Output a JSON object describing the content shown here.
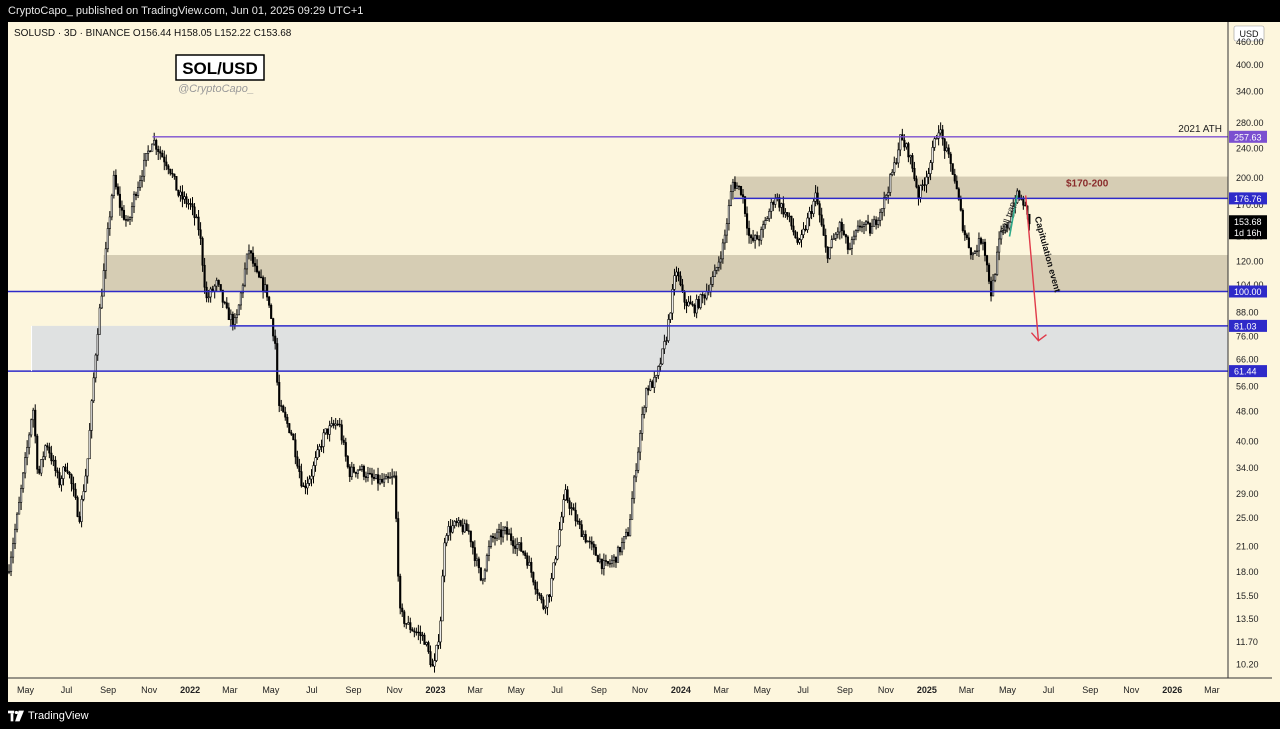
{
  "header": {
    "published_line": "CryptoCapo_ published on TradingView.com, Jun 01, 2025 09:29 UTC+1"
  },
  "footer": {
    "brand": "TradingView"
  },
  "chart_data": {
    "type": "candlestick",
    "symbol_line": "SOLUSD · 3D · BINANCE",
    "ohlc": {
      "open": "O156.44",
      "high": "H158.05",
      "low": "L152.22",
      "close": "C153.68"
    },
    "watermark_title": "SOL/USD",
    "watermark_handle": "@CryptoCapo_",
    "currency": "USD",
    "y_scale": "log",
    "ylim": [
      9.4,
      520
    ],
    "y_ticks": [
      460,
      400,
      340,
      280,
      240,
      200,
      170,
      140,
      120,
      104,
      88,
      76,
      66,
      56,
      48,
      40,
      34,
      29,
      25,
      21,
      18,
      15.5,
      13.5,
      11.7,
      10.2
    ],
    "y_tick_labels": [
      "460.00",
      "400.00",
      "340.00",
      "280.00",
      "240.00",
      "200.00",
      "170.00",
      "140.00",
      "120.00",
      "104.00",
      "88.00",
      "76.00",
      "66.00",
      "56.00",
      "48.00",
      "40.00",
      "34.00",
      "29.00",
      "25.00",
      "21.00",
      "18.00",
      "15.50",
      "13.50",
      "11.70",
      "10.20"
    ],
    "x_range": [
      "2021-04-05",
      "2026-03-25"
    ],
    "x_ticks": [
      {
        "date": "2021-05-01",
        "label": "May"
      },
      {
        "date": "2021-07-01",
        "label": "Jul"
      },
      {
        "date": "2021-09-01",
        "label": "Sep"
      },
      {
        "date": "2021-11-01",
        "label": "Nov"
      },
      {
        "date": "2022-01-01",
        "label": "2022"
      },
      {
        "date": "2022-03-01",
        "label": "Mar"
      },
      {
        "date": "2022-05-01",
        "label": "May"
      },
      {
        "date": "2022-07-01",
        "label": "Jul"
      },
      {
        "date": "2022-09-01",
        "label": "Sep"
      },
      {
        "date": "2022-11-01",
        "label": "Nov"
      },
      {
        "date": "2023-01-01",
        "label": "2023"
      },
      {
        "date": "2023-03-01",
        "label": "Mar"
      },
      {
        "date": "2023-05-01",
        "label": "May"
      },
      {
        "date": "2023-07-01",
        "label": "Jul"
      },
      {
        "date": "2023-09-01",
        "label": "Sep"
      },
      {
        "date": "2023-11-01",
        "label": "Nov"
      },
      {
        "date": "2024-01-01",
        "label": "2024"
      },
      {
        "date": "2024-03-01",
        "label": "Mar"
      },
      {
        "date": "2024-05-01",
        "label": "May"
      },
      {
        "date": "2024-07-01",
        "label": "Jul"
      },
      {
        "date": "2024-09-01",
        "label": "Sep"
      },
      {
        "date": "2024-11-01",
        "label": "Nov"
      },
      {
        "date": "2025-01-01",
        "label": "2025"
      },
      {
        "date": "2025-03-01",
        "label": "Mar"
      },
      {
        "date": "2025-05-01",
        "label": "May"
      },
      {
        "date": "2025-07-01",
        "label": "Jul"
      },
      {
        "date": "2025-09-01",
        "label": "Sep"
      },
      {
        "date": "2025-11-01",
        "label": "Nov"
      },
      {
        "date": "2026-01-01",
        "label": "2026"
      },
      {
        "date": "2026-03-01",
        "label": "Mar"
      }
    ],
    "price_path": [
      [
        "2021-04-05",
        18
      ],
      [
        "2021-04-20",
        26
      ],
      [
        "2021-05-05",
        40
      ],
      [
        "2021-05-12",
        50
      ],
      [
        "2021-05-20",
        32
      ],
      [
        "2021-06-01",
        40
      ],
      [
        "2021-06-20",
        31
      ],
      [
        "2021-07-01",
        35
      ],
      [
        "2021-07-20",
        25
      ],
      [
        "2021-08-01",
        35
      ],
      [
        "2021-08-15",
        75
      ],
      [
        "2021-08-25",
        110
      ],
      [
        "2021-09-09",
        200
      ],
      [
        "2021-09-20",
        165
      ],
      [
        "2021-10-01",
        150
      ],
      [
        "2021-10-10",
        180
      ],
      [
        "2021-10-22",
        210
      ],
      [
        "2021-11-06",
        255
      ],
      [
        "2021-11-20",
        230
      ],
      [
        "2021-12-01",
        215
      ],
      [
        "2021-12-15",
        180
      ],
      [
        "2022-01-01",
        170
      ],
      [
        "2022-01-15",
        145
      ],
      [
        "2022-01-25",
        95
      ],
      [
        "2022-02-10",
        105
      ],
      [
        "2022-02-24",
        88
      ],
      [
        "2022-03-10",
        82
      ],
      [
        "2022-03-29",
        130
      ],
      [
        "2022-04-10",
        110
      ],
      [
        "2022-04-25",
        100
      ],
      [
        "2022-05-08",
        72
      ],
      [
        "2022-05-12",
        50
      ],
      [
        "2022-06-01",
        42
      ],
      [
        "2022-06-18",
        30
      ],
      [
        "2022-07-01",
        33
      ],
      [
        "2022-07-20",
        42
      ],
      [
        "2022-08-10",
        45
      ],
      [
        "2022-08-25",
        33
      ],
      [
        "2022-09-10",
        34
      ],
      [
        "2022-09-25",
        32
      ],
      [
        "2022-10-15",
        31
      ],
      [
        "2022-11-01",
        32
      ],
      [
        "2022-11-09",
        14
      ],
      [
        "2022-11-20",
        13
      ],
      [
        "2022-12-15",
        12
      ],
      [
        "2022-12-29",
        9.8
      ],
      [
        "2023-01-08",
        13
      ],
      [
        "2023-01-15",
        23
      ],
      [
        "2023-02-01",
        24
      ],
      [
        "2023-02-20",
        23
      ],
      [
        "2023-03-10",
        17
      ],
      [
        "2023-03-25",
        22
      ],
      [
        "2023-04-15",
        23
      ],
      [
        "2023-05-15",
        20
      ],
      [
        "2023-06-10",
        14.5
      ],
      [
        "2023-06-20",
        16
      ],
      [
        "2023-07-13",
        29
      ],
      [
        "2023-08-01",
        24
      ],
      [
        "2023-08-20",
        21
      ],
      [
        "2023-09-10",
        18.5
      ],
      [
        "2023-09-25",
        19.5
      ],
      [
        "2023-10-15",
        23
      ],
      [
        "2023-10-25",
        33
      ],
      [
        "2023-11-10",
        55
      ],
      [
        "2023-11-25",
        58
      ],
      [
        "2023-12-10",
        75
      ],
      [
        "2023-12-25",
        115
      ],
      [
        "2024-01-05",
        95
      ],
      [
        "2024-01-20",
        90
      ],
      [
        "2024-02-05",
        98
      ],
      [
        "2024-02-20",
        110
      ],
      [
        "2024-03-05",
        135
      ],
      [
        "2024-03-18",
        195
      ],
      [
        "2024-04-01",
        185
      ],
      [
        "2024-04-13",
        135
      ],
      [
        "2024-04-28",
        140
      ],
      [
        "2024-05-20",
        180
      ],
      [
        "2024-06-10",
        155
      ],
      [
        "2024-06-25",
        132
      ],
      [
        "2024-07-20",
        180
      ],
      [
        "2024-08-05",
        125
      ],
      [
        "2024-08-25",
        150
      ],
      [
        "2024-09-07",
        128
      ],
      [
        "2024-09-25",
        152
      ],
      [
        "2024-10-10",
        145
      ],
      [
        "2024-10-30",
        175
      ],
      [
        "2024-11-15",
        220
      ],
      [
        "2024-11-22",
        255
      ],
      [
        "2024-12-05",
        235
      ],
      [
        "2024-12-20",
        180
      ],
      [
        "2025-01-05",
        215
      ],
      [
        "2025-01-18",
        275
      ],
      [
        "2025-01-28",
        240
      ],
      [
        "2025-02-10",
        205
      ],
      [
        "2025-02-25",
        145
      ],
      [
        "2025-03-10",
        125
      ],
      [
        "2025-03-25",
        140
      ],
      [
        "2025-04-07",
        98
      ],
      [
        "2025-04-20",
        140
      ],
      [
        "2025-05-01",
        150
      ],
      [
        "2025-05-14",
        180
      ],
      [
        "2025-05-25",
        172
      ],
      [
        "2025-06-01",
        153.68
      ]
    ],
    "horizontal_levels": [
      {
        "value": 257.63,
        "label": "257.63",
        "color": "#7b4fd0",
        "start": "2021-11-06"
      },
      {
        "value": 176.76,
        "label": "176.76",
        "color": "#2e2ac9",
        "start": "2024-03-20"
      },
      {
        "value": 100.0,
        "label": "100.00",
        "color": "#2e2ac9",
        "start": "2021-04-05"
      },
      {
        "value": 81.03,
        "label": "81.03",
        "color": "#2e2ac9",
        "start": "2022-03-01"
      },
      {
        "value": 61.44,
        "label": "61.44",
        "color": "#2e2ac9",
        "start": "2021-04-05"
      }
    ],
    "zones": [
      {
        "from": 176.76,
        "to": 202,
        "start": "2024-03-20",
        "color": "#cfc6ad"
      },
      {
        "from": 100,
        "to": 125,
        "start": "2021-08-25",
        "color": "#cfc6ad"
      },
      {
        "from": 61.44,
        "to": 81.03,
        "start": "2021-05-10",
        "color": "#d9dde2"
      }
    ],
    "current_price_label": "153.68",
    "current_countdown": "1d 16h",
    "annotations": {
      "ath_label": "2021 ATH",
      "target_range_label": "$170-200",
      "bull_trap_label": "Bull trap",
      "capitulation_label": "Capitulation event"
    },
    "colors": {
      "background": "#fdf6dd",
      "candle_up": "#ffffff",
      "candle_down": "#000000",
      "level_blue": "#2e2ac9",
      "level_purple": "#7b4fd0",
      "arrow_red": "#e03a4a",
      "bull_trap_green": "#2fa98a",
      "target_text": "#8a2b2b"
    }
  }
}
